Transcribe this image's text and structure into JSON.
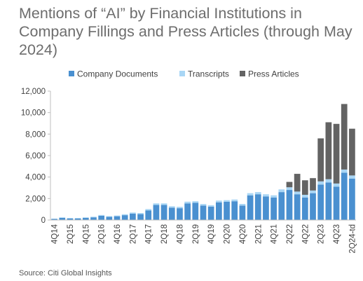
{
  "chart_data": {
    "type": "bar",
    "stacked": true,
    "title_lines": [
      "Mentions of “AI” by Financial Institutions in",
      "Company Fillings and Press Articles (through May",
      "2024)"
    ],
    "source": "Source: Citi Global Insights",
    "ylim": [
      0,
      12000
    ],
    "yticks": [
      0,
      2000,
      4000,
      6000,
      8000,
      10000,
      12000
    ],
    "ytick_labels": [
      "0",
      "2,000",
      "4,000",
      "6,000",
      "8,000",
      "10,000",
      "12,000"
    ],
    "x_tick_labels": [
      "4Q14",
      "2Q15",
      "4Q15",
      "2Q16",
      "4Q16",
      "2Q17",
      "4Q17",
      "2Q18",
      "4Q18",
      "2Q19",
      "4Q19",
      "2Q20",
      "4Q20",
      "2Q21",
      "4Q21",
      "2Q22",
      "4Q22",
      "2Q23",
      "4Q23",
      "2Q24-td"
    ],
    "categories": [
      "4Q14",
      "1Q15",
      "2Q15",
      "3Q15",
      "4Q15",
      "1Q16",
      "2Q16",
      "3Q16",
      "4Q16",
      "1Q17",
      "2Q17",
      "3Q17",
      "4Q17",
      "1Q18",
      "2Q18",
      "3Q18",
      "4Q18",
      "1Q19",
      "2Q19",
      "3Q19",
      "4Q19",
      "1Q20",
      "2Q20",
      "3Q20",
      "4Q20",
      "1Q21",
      "2Q21",
      "3Q21",
      "4Q21",
      "1Q22",
      "2Q22",
      "3Q22",
      "4Q22",
      "1Q23",
      "2Q23",
      "3Q23",
      "4Q23",
      "1Q24",
      "2Q24-td"
    ],
    "legend_position": "top",
    "grid": false,
    "series": [
      {
        "name": "Company Documents",
        "color": "#4a90d0",
        "values": [
          100,
          200,
          150,
          150,
          200,
          250,
          400,
          300,
          350,
          450,
          600,
          550,
          900,
          1400,
          1400,
          1150,
          1100,
          1550,
          1600,
          1350,
          1250,
          1650,
          1700,
          1750,
          1350,
          2300,
          2400,
          2200,
          2100,
          2600,
          2800,
          2400,
          2100,
          2500,
          3300,
          3500,
          3100,
          4400,
          3850
        ]
      },
      {
        "name": "Transcripts",
        "color": "#a9d6f5",
        "values": [
          30,
          50,
          40,
          40,
          50,
          60,
          70,
          60,
          70,
          90,
          100,
          100,
          120,
          150,
          150,
          130,
          130,
          160,
          150,
          140,
          130,
          160,
          150,
          160,
          150,
          200,
          200,
          200,
          200,
          250,
          250,
          250,
          250,
          250,
          300,
          300,
          300,
          300,
          300
        ]
      },
      {
        "name": "Press Articles",
        "color": "#636363",
        "values": [
          0,
          0,
          0,
          0,
          0,
          0,
          0,
          0,
          0,
          0,
          0,
          0,
          0,
          0,
          0,
          0,
          0,
          0,
          0,
          0,
          0,
          0,
          0,
          0,
          0,
          0,
          0,
          0,
          0,
          0,
          500,
          1650,
          1350,
          1150,
          4000,
          5300,
          5550,
          6100,
          4350
        ]
      }
    ]
  }
}
